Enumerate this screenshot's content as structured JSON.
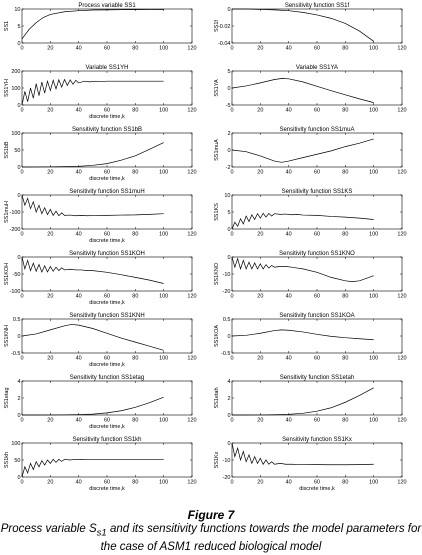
{
  "figure": {
    "title": "Figure 7",
    "caption_before_subscript": "Process variable S",
    "caption_subscript": "s1",
    "caption_after_subscript": " and its sensitivity functions towards the model parameters for the case of ASM1 reduced biological model"
  },
  "chart_data": [
    {
      "type": "line",
      "title": "Process variable SS1",
      "ylabel": "SS1",
      "xlabel": "",
      "xlim": [
        0,
        120
      ],
      "xticks": [
        0,
        20,
        40,
        60,
        80,
        100,
        120
      ],
      "ylim": [
        0,
        10
      ],
      "yticks": [
        "10",
        "5",
        "0"
      ],
      "series": [
        {
          "x": [
            0,
            5,
            10,
            15,
            20,
            30,
            40,
            50,
            60,
            70,
            80,
            90,
            100
          ],
          "y": [
            1.2,
            4.0,
            6.0,
            7.5,
            8.4,
            9.2,
            9.5,
            9.7,
            9.75,
            9.8,
            9.82,
            9.83,
            9.85
          ]
        }
      ]
    },
    {
      "type": "line",
      "title": "Sensitivity function SS1f",
      "ylabel": "SS1f",
      "xlabel": "",
      "xlim": [
        0,
        120
      ],
      "xticks": [
        0,
        20,
        40,
        60,
        80,
        100,
        120
      ],
      "ylim": [
        -0.04,
        0
      ],
      "yticks": [
        "0",
        "-0.02",
        "-0.04"
      ],
      "series": [
        {
          "x": [
            0,
            10,
            20,
            30,
            40,
            50,
            60,
            70,
            80,
            90,
            100
          ],
          "y": [
            0,
            0,
            -0.0005,
            -0.001,
            -0.002,
            -0.004,
            -0.007,
            -0.011,
            -0.017,
            -0.026,
            -0.038
          ]
        }
      ]
    },
    {
      "type": "line",
      "title": "Variable SS1YH",
      "ylabel": "SS1YH",
      "xlabel": "discrete time,k",
      "xlim": [
        0,
        120
      ],
      "xticks": [
        0,
        20,
        40,
        60,
        80,
        100,
        120
      ],
      "ylim": [
        0,
        200
      ],
      "yticks": [
        "200",
        "100",
        "0"
      ],
      "series": [
        {
          "x": [
            0,
            2,
            4,
            6,
            8,
            10,
            12,
            14,
            16,
            18,
            20,
            22,
            24,
            26,
            28,
            30,
            32,
            34,
            36,
            38,
            40,
            44,
            48,
            52,
            56,
            60,
            70,
            80,
            90,
            100
          ],
          "y": [
            0,
            80,
            20,
            100,
            40,
            125,
            55,
            135,
            70,
            140,
            85,
            145,
            95,
            148,
            105,
            150,
            115,
            148,
            122,
            145,
            130,
            140,
            136,
            140,
            138,
            140,
            140,
            140,
            140,
            140
          ]
        }
      ]
    },
    {
      "type": "line",
      "title": "Variable SS1YA",
      "ylabel": "SS1YA",
      "xlabel": "",
      "xlim": [
        0,
        120
      ],
      "xticks": [
        0,
        20,
        40,
        60,
        80,
        100,
        120
      ],
      "ylim": [
        -5,
        5
      ],
      "yticks": [
        "5",
        "0",
        "-5"
      ],
      "series": [
        {
          "x": [
            0,
            10,
            20,
            30,
            35,
            40,
            50,
            60,
            70,
            80,
            90,
            100
          ],
          "y": [
            0,
            0.6,
            1.5,
            2.5,
            2.8,
            2.7,
            1.8,
            0.5,
            -0.8,
            -2.0,
            -3.2,
            -4.3
          ]
        }
      ]
    },
    {
      "type": "line",
      "title": "Sensitivity function SS1bB",
      "ylabel": "SS1bB",
      "xlabel": "discrete time,k",
      "xlim": [
        0,
        120
      ],
      "xticks": [
        0,
        20,
        40,
        60,
        80,
        100,
        120
      ],
      "ylim": [
        0,
        100
      ],
      "yticks": [
        "100",
        "50",
        "0"
      ],
      "series": [
        {
          "x": [
            0,
            10,
            20,
            30,
            40,
            50,
            60,
            70,
            80,
            90,
            100
          ],
          "y": [
            0,
            0.2,
            0.5,
            1,
            2,
            5,
            10,
            20,
            33,
            52,
            72
          ]
        }
      ]
    },
    {
      "type": "line",
      "title": "Sensitivity function SS1muA",
      "ylabel": "SS1muA",
      "xlabel": "",
      "xlim": [
        0,
        120
      ],
      "xticks": [
        0,
        20,
        40,
        60,
        80,
        100,
        120
      ],
      "ylim": [
        -2,
        2
      ],
      "yticks": [
        "2",
        "0",
        "-2"
      ],
      "series": [
        {
          "x": [
            0,
            10,
            20,
            30,
            35,
            40,
            50,
            60,
            70,
            80,
            90,
            100
          ],
          "y": [
            0,
            -0.2,
            -0.7,
            -1.3,
            -1.45,
            -1.3,
            -0.9,
            -0.5,
            -0.1,
            0.4,
            0.8,
            1.3
          ]
        }
      ]
    },
    {
      "type": "line",
      "title": "Sensitivity function SS1muH",
      "ylabel": "SS1muH",
      "xlabel": "discrete time,k",
      "xlim": [
        0,
        120
      ],
      "xticks": [
        0,
        20,
        40,
        60,
        80,
        100,
        120
      ],
      "ylim": [
        -200,
        0
      ],
      "yticks": [
        "0",
        "-100",
        "-200"
      ],
      "series": [
        {
          "x": [
            0,
            2,
            4,
            6,
            8,
            10,
            12,
            14,
            16,
            18,
            20,
            22,
            24,
            26,
            28,
            30,
            34,
            38,
            42,
            46,
            50,
            60,
            70,
            80,
            90,
            100
          ],
          "y": [
            0,
            -60,
            -20,
            -80,
            -40,
            -100,
            -60,
            -110,
            -75,
            -115,
            -85,
            -120,
            -95,
            -122,
            -105,
            -120,
            -118,
            -122,
            -120,
            -122,
            -121,
            -120,
            -118,
            -117,
            -114,
            -110
          ]
        }
      ]
    },
    {
      "type": "line",
      "title": "Sensitivity function SS1KS",
      "ylabel": "SS1KS",
      "xlabel": "",
      "xlim": [
        0,
        120
      ],
      "xticks": [
        0,
        20,
        40,
        60,
        80,
        100,
        120
      ],
      "ylim": [
        0,
        10
      ],
      "yticks": [
        "10",
        "5",
        "0"
      ],
      "series": [
        {
          "x": [
            0,
            2,
            4,
            6,
            8,
            10,
            12,
            14,
            16,
            18,
            20,
            22,
            24,
            26,
            28,
            30,
            34,
            38,
            42,
            46,
            50,
            60,
            70,
            80,
            90,
            100
          ],
          "y": [
            0,
            2,
            0.8,
            3,
            1.5,
            3.8,
            2.2,
            4.2,
            2.8,
            4.5,
            3.2,
            4.6,
            3.5,
            4.6,
            3.8,
            4.5,
            4.3,
            4.4,
            4.2,
            4.3,
            4.1,
            4.0,
            3.7,
            3.5,
            3.2,
            2.8
          ]
        }
      ]
    },
    {
      "type": "line",
      "title": "Sensitivity function SS1KOH",
      "ylabel": "SS1KOH",
      "xlabel": "discrete time,k",
      "xlim": [
        0,
        120
      ],
      "xticks": [
        0,
        20,
        40,
        60,
        80,
        100,
        120
      ],
      "ylim": [
        -100,
        0
      ],
      "yticks": [
        "0",
        "-50",
        "-100"
      ],
      "series": [
        {
          "x": [
            0,
            2,
            4,
            6,
            8,
            10,
            12,
            14,
            16,
            18,
            20,
            22,
            24,
            26,
            28,
            30,
            34,
            38,
            42,
            46,
            50,
            60,
            70,
            80,
            90,
            100
          ],
          "y": [
            0,
            -35,
            -10,
            -40,
            -18,
            -42,
            -22,
            -44,
            -26,
            -44,
            -28,
            -42,
            -30,
            -40,
            -32,
            -38,
            -36,
            -38,
            -38,
            -40,
            -40,
            -45,
            -52,
            -60,
            -68,
            -78
          ]
        }
      ]
    },
    {
      "type": "line",
      "title": "Sensitivity function SS1KNO",
      "ylabel": "SS1KNO",
      "xlabel": "",
      "xlim": [
        0,
        120
      ],
      "xticks": [
        0,
        20,
        40,
        60,
        80,
        100,
        120
      ],
      "ylim": [
        -20,
        0
      ],
      "yticks": [
        "0",
        "-10",
        "-20"
      ],
      "series": [
        {
          "x": [
            0,
            2,
            4,
            6,
            8,
            10,
            12,
            14,
            16,
            18,
            20,
            22,
            24,
            26,
            28,
            30,
            34,
            38,
            42,
            46,
            50,
            60,
            70,
            80,
            85,
            90,
            100
          ],
          "y": [
            0,
            -6,
            -1,
            -7,
            -2,
            -7,
            -3,
            -7,
            -3.5,
            -7,
            -4,
            -7,
            -4.5,
            -6.5,
            -5,
            -6,
            -5.5,
            -5.5,
            -6,
            -6.5,
            -7,
            -9,
            -12,
            -14,
            -14.5,
            -14,
            -11
          ]
        }
      ]
    },
    {
      "type": "line",
      "title": "Sensitivity function SS1KNH",
      "ylabel": "SS1KNH",
      "xlabel": "discrete time,k",
      "xlim": [
        0,
        120
      ],
      "xticks": [
        0,
        20,
        40,
        60,
        80,
        100,
        120
      ],
      "ylim": [
        -0.5,
        0.5
      ],
      "yticks": [
        "0.5",
        "0",
        "-0.5"
      ],
      "series": [
        {
          "x": [
            0,
            10,
            20,
            30,
            35,
            40,
            50,
            60,
            70,
            80,
            90,
            100
          ],
          "y": [
            0,
            0.06,
            0.18,
            0.3,
            0.34,
            0.32,
            0.22,
            0.08,
            -0.06,
            -0.18,
            -0.3,
            -0.42
          ]
        }
      ]
    },
    {
      "type": "line",
      "title": "Sensitivity function SS1KOA",
      "ylabel": "SS1KOA",
      "xlabel": "",
      "xlim": [
        0,
        120
      ],
      "xticks": [
        0,
        20,
        40,
        60,
        80,
        100,
        120
      ],
      "ylim": [
        -0.5,
        0.5
      ],
      "yticks": [
        "0.5",
        "0",
        "-0.5"
      ],
      "series": [
        {
          "x": [
            0,
            10,
            20,
            30,
            35,
            40,
            50,
            60,
            70,
            80,
            90,
            100
          ],
          "y": [
            0,
            0.02,
            0.08,
            0.16,
            0.18,
            0.17,
            0.12,
            0.05,
            -0.01,
            -0.05,
            -0.08,
            -0.11
          ]
        }
      ]
    },
    {
      "type": "line",
      "title": "Sensitivity function SS1etag",
      "ylabel": "SS1etag",
      "xlabel": "discrete time,k",
      "xlim": [
        0,
        120
      ],
      "xticks": [
        0,
        20,
        40,
        60,
        80,
        100,
        120
      ],
      "ylim": [
        0,
        4
      ],
      "yticks": [
        "4",
        "2",
        "0"
      ],
      "series": [
        {
          "x": [
            0,
            10,
            20,
            30,
            40,
            50,
            60,
            70,
            80,
            90,
            100
          ],
          "y": [
            0,
            0,
            0.01,
            0.02,
            0.05,
            0.1,
            0.25,
            0.5,
            0.9,
            1.45,
            2.1
          ]
        }
      ]
    },
    {
      "type": "line",
      "title": "Sensitivity function SS1etah",
      "ylabel": "SS1etah",
      "xlabel": "",
      "xlim": [
        0,
        120
      ],
      "xticks": [
        0,
        20,
        40,
        60,
        80,
        100,
        120
      ],
      "ylim": [
        0,
        4
      ],
      "yticks": [
        "4",
        "2",
        "0"
      ],
      "series": [
        {
          "x": [
            0,
            10,
            20,
            30,
            40,
            50,
            60,
            70,
            80,
            90,
            100
          ],
          "y": [
            0,
            0,
            0.01,
            0.03,
            0.08,
            0.2,
            0.45,
            0.85,
            1.5,
            2.3,
            3.2
          ]
        }
      ]
    },
    {
      "type": "line",
      "title": "Sensitivity function SS1kh",
      "ylabel": "SS1kh",
      "xlabel": "discrete time,k",
      "xlim": [
        0,
        120
      ],
      "xticks": [
        0,
        20,
        40,
        60,
        80,
        100,
        120
      ],
      "ylim": [
        0,
        100
      ],
      "yticks": [
        "100",
        "50",
        "0"
      ],
      "series": [
        {
          "x": [
            0,
            2,
            4,
            6,
            8,
            10,
            12,
            14,
            16,
            18,
            20,
            22,
            24,
            26,
            28,
            30,
            34,
            38,
            42,
            46,
            50,
            60,
            70,
            80,
            90,
            100
          ],
          "y": [
            0,
            30,
            12,
            40,
            22,
            45,
            30,
            48,
            35,
            50,
            40,
            52,
            43,
            52,
            46,
            52,
            50,
            52,
            51,
            52,
            52,
            52,
            52,
            52,
            52,
            52
          ]
        }
      ]
    },
    {
      "type": "line",
      "title": "Sensitivity function SS1Kx",
      "ylabel": "SS1Kx",
      "xlabel": "discrete time,k",
      "xlim": [
        0,
        120
      ],
      "xticks": [
        0,
        20,
        40,
        60,
        80,
        100,
        120
      ],
      "ylim": [
        -20,
        0
      ],
      "yticks": [
        "0",
        "-10",
        "-20"
      ],
      "series": [
        {
          "x": [
            0,
            2,
            4,
            6,
            8,
            10,
            12,
            14,
            16,
            18,
            20,
            22,
            24,
            26,
            28,
            30,
            34,
            38,
            42,
            46,
            50,
            60,
            70,
            80,
            90,
            100
          ],
          "y": [
            0,
            -8,
            -3,
            -10,
            -5,
            -11,
            -7,
            -12,
            -8,
            -12,
            -9,
            -12.5,
            -10,
            -12.5,
            -11,
            -12.5,
            -12,
            -12.5,
            -12.5,
            -12.6,
            -12.6,
            -12.7,
            -12.8,
            -12.8,
            -12.7,
            -12.5
          ]
        }
      ]
    }
  ]
}
